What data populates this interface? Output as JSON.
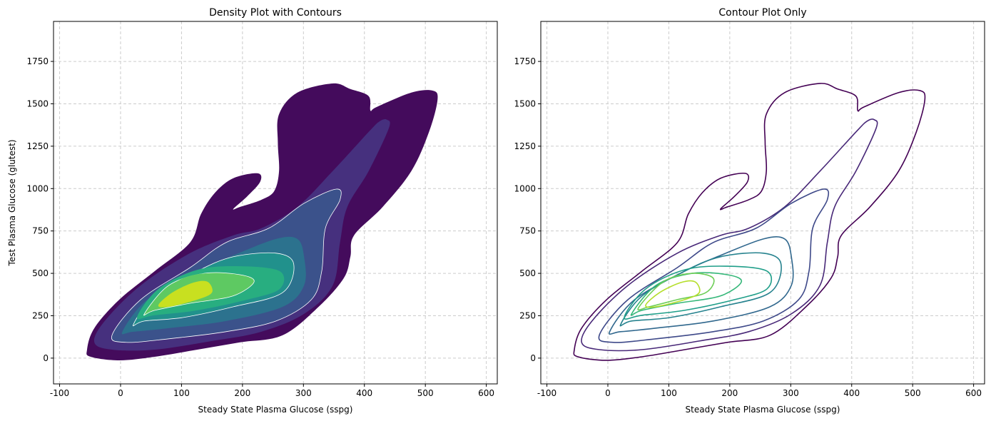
{
  "chart_data": [
    {
      "type": "contour-filled",
      "title": "Density Plot with Contours",
      "xlabel": "Steady State Plasma Glucose (sspg)",
      "ylabel": "Test Plasma Glucose (glutest)",
      "xlim": [
        -110,
        618
      ],
      "ylim": [
        -152,
        1986
      ],
      "xticks": [
        -100,
        0,
        100,
        200,
        300,
        400,
        500,
        600
      ],
      "yticks": [
        0,
        250,
        500,
        750,
        1000,
        1250,
        1500,
        1750
      ],
      "grid": true,
      "filled": true,
      "white_lines_levels": [
        3,
        5,
        7
      ]
    },
    {
      "type": "contour-lines",
      "title": "Contour Plot Only",
      "xlabel": "Steady State Plasma Glucose (sspg)",
      "ylabel": "",
      "xlim": [
        -110,
        618
      ],
      "ylim": [
        -152,
        1986
      ],
      "xticks": [
        -100,
        0,
        100,
        200,
        300,
        400,
        500,
        600
      ],
      "yticks": [
        0,
        250,
        500,
        750,
        1000,
        1250,
        1500,
        1750
      ],
      "grid": true,
      "filled": false
    }
  ],
  "levels": [
    {
      "color": "#440154",
      "fill": "#440b5c",
      "points": [
        [
          -55,
          50
        ],
        [
          -43,
          177
        ],
        [
          -2,
          345
        ],
        [
          56,
          513
        ],
        [
          114,
          682
        ],
        [
          132,
          850
        ],
        [
          155,
          976
        ],
        [
          185,
          1061
        ],
        [
          225,
          1090
        ],
        [
          229,
          1040
        ],
        [
          208,
          955
        ],
        [
          185,
          880
        ],
        [
          196,
          892
        ],
        [
          231,
          934
        ],
        [
          252,
          985
        ],
        [
          260,
          1103
        ],
        [
          258,
          1271
        ],
        [
          260,
          1439
        ],
        [
          290,
          1566
        ],
        [
          348,
          1620
        ],
        [
          377,
          1587
        ],
        [
          407,
          1545
        ],
        [
          410,
          1460
        ],
        [
          420,
          1481
        ],
        [
          477,
          1566
        ],
        [
          512,
          1578
        ],
        [
          520,
          1524
        ],
        [
          506,
          1334
        ],
        [
          477,
          1103
        ],
        [
          430,
          892
        ],
        [
          383,
          724
        ],
        [
          377,
          598
        ],
        [
          366,
          471
        ],
        [
          325,
          303
        ],
        [
          266,
          135
        ],
        [
          196,
          93
        ],
        [
          126,
          50
        ],
        [
          56,
          8
        ],
        [
          -2,
          -13
        ],
        [
          -49,
          8
        ]
      ]
    },
    {
      "color": "#482878",
      "fill": "#46307e",
      "points": [
        [
          -43,
          93
        ],
        [
          -26,
          219
        ],
        [
          33,
          429
        ],
        [
          114,
          619
        ],
        [
          185,
          724
        ],
        [
          231,
          766
        ],
        [
          290,
          892
        ],
        [
          348,
          1103
        ],
        [
          407,
          1334
        ],
        [
          425,
          1397
        ],
        [
          437,
          1406
        ],
        [
          440,
          1355
        ],
        [
          407,
          1103
        ],
        [
          372,
          892
        ],
        [
          360,
          682
        ],
        [
          348,
          429
        ],
        [
          301,
          261
        ],
        [
          231,
          156
        ],
        [
          150,
          101
        ],
        [
          56,
          50
        ],
        [
          -14,
          50
        ]
      ]
    },
    {
      "color": "#3e4989",
      "fill": "#3b528b",
      "points": [
        [
          -14,
          135
        ],
        [
          33,
          345
        ],
        [
          114,
          534
        ],
        [
          173,
          682
        ],
        [
          243,
          766
        ],
        [
          301,
          913
        ],
        [
          354,
          997
        ],
        [
          360,
          934
        ],
        [
          336,
          766
        ],
        [
          330,
          513
        ],
        [
          313,
          345
        ],
        [
          255,
          219
        ],
        [
          173,
          156
        ],
        [
          79,
          114
        ],
        [
          9,
          93
        ]
      ]
    },
    {
      "color": "#31688e",
      "fill": "#2c728e",
      "points": [
        [
          3,
          156
        ],
        [
          44,
          345
        ],
        [
          126,
          513
        ],
        [
          185,
          606
        ],
        [
          255,
          703
        ],
        [
          290,
          703
        ],
        [
          301,
          598
        ],
        [
          301,
          429
        ],
        [
          266,
          303
        ],
        [
          173,
          219
        ],
        [
          79,
          177
        ],
        [
          21,
          156
        ]
      ]
    },
    {
      "color": "#26828e",
      "fill": "#21918c",
      "points": [
        [
          21,
          198
        ],
        [
          56,
          366
        ],
        [
          126,
          513
        ],
        [
          185,
          598
        ],
        [
          255,
          619
        ],
        [
          284,
          556
        ],
        [
          266,
          387
        ],
        [
          185,
          303
        ],
        [
          103,
          240
        ],
        [
          39,
          219
        ]
      ]
    },
    {
      "color": "#1f9e89",
      "fill": "#28ae80",
      "points": [
        [
          27,
          240
        ],
        [
          62,
          408
        ],
        [
          126,
          521
        ],
        [
          196,
          542
        ],
        [
          261,
          513
        ],
        [
          261,
          408
        ],
        [
          208,
          345
        ],
        [
          126,
          282
        ],
        [
          56,
          253
        ]
      ]
    },
    {
      "color": "#35b779",
      "fill": "#5ec962",
      "points": [
        [
          39,
          261
        ],
        [
          79,
          429
        ],
        [
          138,
          500
        ],
        [
          196,
          492
        ],
        [
          219,
          450
        ],
        [
          184,
          366
        ],
        [
          115,
          324
        ],
        [
          56,
          282
        ]
      ]
    },
    {
      "color": "#6ece58",
      "fill": "#5ec962",
      "points": [
        [
          50,
          295
        ],
        [
          91,
          450
        ],
        [
          138,
          500
        ],
        [
          173,
          471
        ],
        [
          161,
          387
        ],
        [
          114,
          345
        ],
        [
          68,
          303
        ]
      ]
    },
    {
      "color": "#b5de2b",
      "fill": "#c8e020",
      "points": [
        [
          62,
          312
        ],
        [
          85,
          387
        ],
        [
          120,
          446
        ],
        [
          143,
          450
        ],
        [
          150,
          387
        ],
        [
          126,
          345
        ],
        [
          79,
          303
        ]
      ]
    }
  ]
}
